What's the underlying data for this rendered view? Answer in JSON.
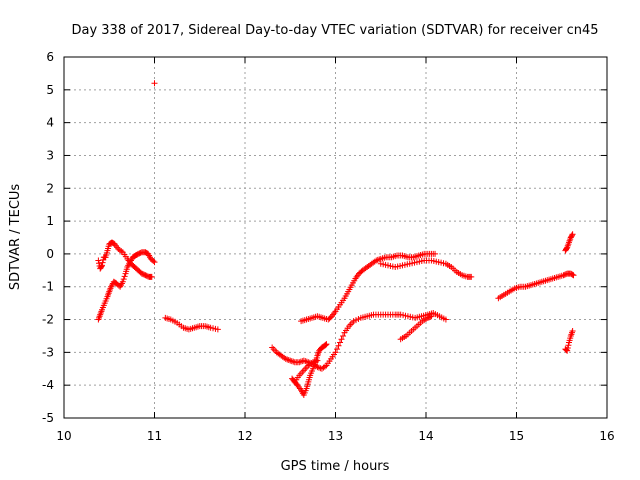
{
  "chart_data": {
    "type": "scatter",
    "title": "Day 338 of 2017, Sidereal Day-to-day VTEC variation (SDTVAR) for receiver cn45",
    "xlabel": "GPS time / hours",
    "ylabel": "SDTVAR / TECUs",
    "xlim": [
      10,
      16
    ],
    "ylim": [
      -5,
      6
    ],
    "xticks": [
      "10",
      "11",
      "12",
      "13",
      "14",
      "15",
      "16"
    ],
    "yticks": [
      "-5",
      "-4",
      "-3",
      "-2",
      "-1",
      "0",
      "1",
      "2",
      "3",
      "4",
      "5",
      "6"
    ],
    "grid": true,
    "legend": "none",
    "marker": "plus",
    "color": "#ff0000",
    "series": [
      {
        "points": [
          [
            10.38,
            -2.0
          ],
          [
            10.4,
            -1.85
          ],
          [
            10.42,
            -1.7
          ],
          [
            10.45,
            -1.5
          ],
          [
            10.48,
            -1.3
          ],
          [
            10.5,
            -1.15
          ],
          [
            10.52,
            -1.0
          ],
          [
            10.55,
            -0.85
          ],
          [
            10.58,
            -0.9
          ],
          [
            10.62,
            -1.0
          ],
          [
            10.65,
            -0.85
          ],
          [
            10.68,
            -0.6
          ],
          [
            10.7,
            -0.4
          ],
          [
            10.73,
            -0.25
          ],
          [
            10.76,
            -0.1
          ],
          [
            10.79,
            -0.05
          ],
          [
            10.82,
            0.0
          ],
          [
            10.86,
            0.05
          ],
          [
            10.9,
            0.05
          ],
          [
            10.93,
            0.0
          ],
          [
            10.96,
            -0.15
          ],
          [
            11.0,
            -0.25
          ]
        ]
      },
      {
        "points": [
          [
            10.38,
            -0.2
          ],
          [
            10.4,
            -0.45
          ],
          [
            10.42,
            -0.35
          ],
          [
            10.44,
            -0.1
          ],
          [
            10.46,
            -0.1
          ],
          [
            10.48,
            0.1
          ],
          [
            10.5,
            0.3
          ],
          [
            10.53,
            0.35
          ],
          [
            10.56,
            0.3
          ],
          [
            10.6,
            0.15
          ],
          [
            10.65,
            0.05
          ],
          [
            10.7,
            -0.15
          ],
          [
            10.74,
            -0.3
          ],
          [
            10.78,
            -0.4
          ],
          [
            10.82,
            -0.5
          ],
          [
            10.86,
            -0.6
          ],
          [
            10.9,
            -0.65
          ],
          [
            10.94,
            -0.7
          ],
          [
            10.97,
            -0.7
          ]
        ]
      },
      {
        "points": [
          [
            11.0,
            5.2
          ]
        ]
      },
      {
        "points": [
          [
            11.12,
            -1.95
          ],
          [
            11.18,
            -2.0
          ],
          [
            11.25,
            -2.1
          ],
          [
            11.32,
            -2.25
          ],
          [
            11.38,
            -2.3
          ],
          [
            11.44,
            -2.25
          ],
          [
            11.5,
            -2.2
          ],
          [
            11.56,
            -2.2
          ],
          [
            11.62,
            -2.25
          ],
          [
            11.7,
            -2.3
          ]
        ]
      },
      {
        "points": [
          [
            12.3,
            -2.85
          ],
          [
            12.35,
            -3.0
          ],
          [
            12.4,
            -3.1
          ],
          [
            12.45,
            -3.2
          ],
          [
            12.5,
            -3.25
          ],
          [
            12.55,
            -3.3
          ],
          [
            12.6,
            -3.3
          ],
          [
            12.65,
            -3.25
          ],
          [
            12.7,
            -3.3
          ],
          [
            12.75,
            -3.35
          ],
          [
            12.8,
            -3.45
          ],
          [
            12.85,
            -3.5
          ],
          [
            12.9,
            -3.4
          ],
          [
            12.95,
            -3.2
          ],
          [
            13.0,
            -3.0
          ],
          [
            13.05,
            -2.7
          ],
          [
            13.1,
            -2.4
          ],
          [
            13.15,
            -2.2
          ],
          [
            13.2,
            -2.05
          ],
          [
            13.28,
            -1.95
          ],
          [
            13.35,
            -1.9
          ],
          [
            13.42,
            -1.85
          ],
          [
            13.5,
            -1.85
          ],
          [
            13.58,
            -1.85
          ],
          [
            13.66,
            -1.85
          ],
          [
            13.72,
            -1.85
          ],
          [
            13.8,
            -1.9
          ],
          [
            13.88,
            -1.95
          ],
          [
            13.95,
            -1.9
          ],
          [
            14.02,
            -1.85
          ],
          [
            14.08,
            -1.8
          ],
          [
            14.15,
            -1.9
          ],
          [
            14.22,
            -2.0
          ]
        ]
      },
      {
        "points": [
          [
            12.52,
            -3.8
          ],
          [
            12.55,
            -3.9
          ],
          [
            12.58,
            -4.0
          ],
          [
            12.62,
            -4.15
          ],
          [
            12.65,
            -4.3
          ],
          [
            12.68,
            -4.1
          ],
          [
            12.7,
            -3.9
          ],
          [
            12.72,
            -3.7
          ],
          [
            12.75,
            -3.5
          ],
          [
            12.78,
            -3.3
          ],
          [
            12.8,
            -3.1
          ],
          [
            12.82,
            -2.95
          ],
          [
            12.85,
            -2.85
          ],
          [
            12.88,
            -2.8
          ],
          [
            12.9,
            -2.75
          ]
        ]
      },
      {
        "points": [
          [
            12.55,
            -3.9
          ],
          [
            12.6,
            -3.7
          ],
          [
            12.65,
            -3.55
          ],
          [
            12.7,
            -3.4
          ],
          [
            12.75,
            -3.3
          ],
          [
            12.8,
            -3.25
          ]
        ]
      },
      {
        "points": [
          [
            12.62,
            -2.05
          ],
          [
            12.68,
            -2.0
          ],
          [
            12.74,
            -1.95
          ],
          [
            12.8,
            -1.9
          ],
          [
            12.86,
            -1.95
          ],
          [
            12.92,
            -2.0
          ],
          [
            12.96,
            -1.9
          ],
          [
            13.0,
            -1.75
          ],
          [
            13.05,
            -1.55
          ],
          [
            13.1,
            -1.35
          ],
          [
            13.14,
            -1.15
          ],
          [
            13.18,
            -0.95
          ],
          [
            13.22,
            -0.75
          ],
          [
            13.26,
            -0.6
          ],
          [
            13.3,
            -0.5
          ],
          [
            13.35,
            -0.4
          ],
          [
            13.4,
            -0.3
          ],
          [
            13.45,
            -0.2
          ],
          [
            13.5,
            -0.15
          ],
          [
            13.56,
            -0.1
          ],
          [
            13.62,
            -0.1
          ],
          [
            13.68,
            -0.05
          ],
          [
            13.74,
            -0.05
          ],
          [
            13.8,
            -0.1
          ],
          [
            13.86,
            -0.1
          ],
          [
            13.92,
            -0.05
          ],
          [
            13.98,
            0.0
          ],
          [
            14.04,
            0.0
          ],
          [
            14.1,
            0.0
          ]
        ]
      },
      {
        "points": [
          [
            13.5,
            -0.3
          ],
          [
            13.58,
            -0.35
          ],
          [
            13.66,
            -0.4
          ],
          [
            13.74,
            -0.35
          ],
          [
            13.82,
            -0.3
          ],
          [
            13.9,
            -0.25
          ],
          [
            13.98,
            -0.2
          ],
          [
            14.06,
            -0.2
          ],
          [
            14.14,
            -0.25
          ],
          [
            14.22,
            -0.3
          ],
          [
            14.28,
            -0.4
          ],
          [
            14.34,
            -0.55
          ],
          [
            14.4,
            -0.65
          ],
          [
            14.46,
            -0.7
          ],
          [
            14.5,
            -0.7
          ]
        ]
      },
      {
        "points": [
          [
            13.72,
            -2.6
          ],
          [
            13.78,
            -2.5
          ],
          [
            13.84,
            -2.35
          ],
          [
            13.9,
            -2.2
          ],
          [
            13.96,
            -2.05
          ],
          [
            14.02,
            -1.95
          ],
          [
            14.06,
            -1.9
          ]
        ]
      },
      {
        "points": [
          [
            14.8,
            -1.35
          ],
          [
            14.86,
            -1.25
          ],
          [
            14.92,
            -1.15
          ],
          [
            14.98,
            -1.05
          ],
          [
            15.04,
            -1.0
          ],
          [
            15.1,
            -1.0
          ],
          [
            15.16,
            -0.95
          ],
          [
            15.22,
            -0.9
          ],
          [
            15.28,
            -0.85
          ],
          [
            15.34,
            -0.8
          ],
          [
            15.4,
            -0.75
          ],
          [
            15.46,
            -0.7
          ],
          [
            15.52,
            -0.65
          ],
          [
            15.56,
            -0.6
          ],
          [
            15.6,
            -0.6
          ],
          [
            15.63,
            -0.65
          ]
        ]
      },
      {
        "points": [
          [
            15.54,
            0.1
          ],
          [
            15.56,
            0.2
          ],
          [
            15.58,
            0.35
          ],
          [
            15.6,
            0.5
          ],
          [
            15.62,
            0.6
          ]
        ]
      },
      {
        "points": [
          [
            15.54,
            -2.9
          ],
          [
            15.56,
            -2.95
          ],
          [
            15.58,
            -2.7
          ],
          [
            15.6,
            -2.5
          ],
          [
            15.62,
            -2.35
          ]
        ]
      }
    ]
  }
}
